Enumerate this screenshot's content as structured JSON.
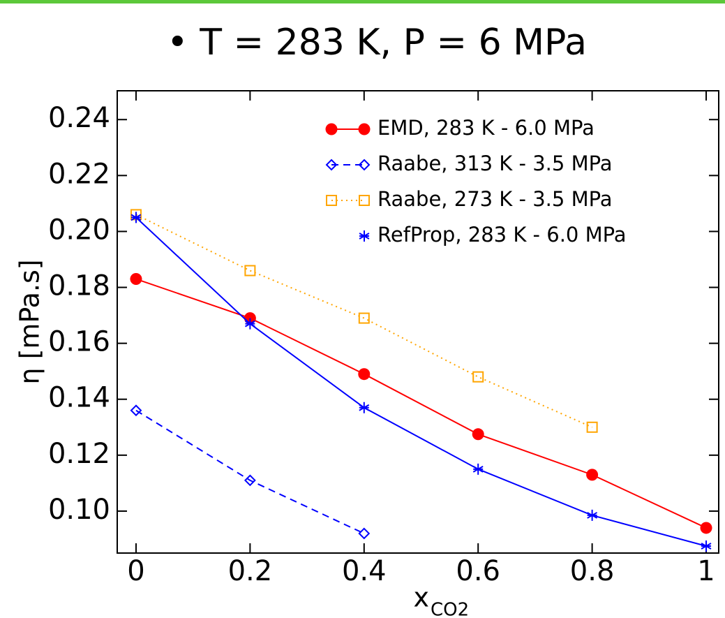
{
  "chart_data": {
    "type": "line",
    "title": "• T = 283 K, P = 6 MPa",
    "xlabel": "x",
    "xlabel_subscript": "CO2",
    "ylabel": "η [mPa.s]",
    "xlim": [
      -0.033,
      1.022
    ],
    "ylim": [
      0.085,
      0.2503
    ],
    "xticks": [
      0,
      0.2,
      0.4,
      0.6,
      0.8,
      1
    ],
    "yticks": [
      {
        "value": 0.1,
        "label": "0.10"
      },
      0.12,
      0.14,
      0.16,
      0.18,
      {
        "value": 0.2,
        "label": "0.20"
      },
      0.22,
      0.24
    ],
    "legend": "upper right",
    "series": [
      {
        "name": "EMD, 283 K - 6.0 MPa",
        "color": "#ff0000",
        "marker": "filled-circle",
        "linestyle": "solid",
        "x": [
          0,
          0.2,
          0.4,
          0.6,
          0.8,
          1
        ],
        "values": [
          0.183,
          0.169,
          0.149,
          0.1275,
          0.113,
          0.094
        ]
      },
      {
        "name": "Raabe, 313 K - 3.5 MPa",
        "color": "#0000ff",
        "marker": "open-diamond",
        "linestyle": "dashed",
        "x": [
          0,
          0.2,
          0.4
        ],
        "values": [
          0.136,
          0.111,
          0.092
        ]
      },
      {
        "name": "Raabe, 273 K - 3.5 MPa",
        "color": "#ffa500",
        "marker": "open-square",
        "linestyle": "dotted",
        "x": [
          0,
          0.2,
          0.4,
          0.6,
          0.8
        ],
        "values": [
          0.206,
          0.186,
          0.169,
          0.148,
          0.13
        ]
      },
      {
        "name": "RefProp, 283 K - 6.0 MPa",
        "color": "#0000ff",
        "marker": "asterisk",
        "linestyle": "solid",
        "x": [
          0,
          0.2,
          0.4,
          0.6,
          0.8,
          1
        ],
        "values": [
          0.205,
          0.167,
          0.137,
          0.115,
          0.0985,
          0.0875
        ]
      }
    ]
  }
}
